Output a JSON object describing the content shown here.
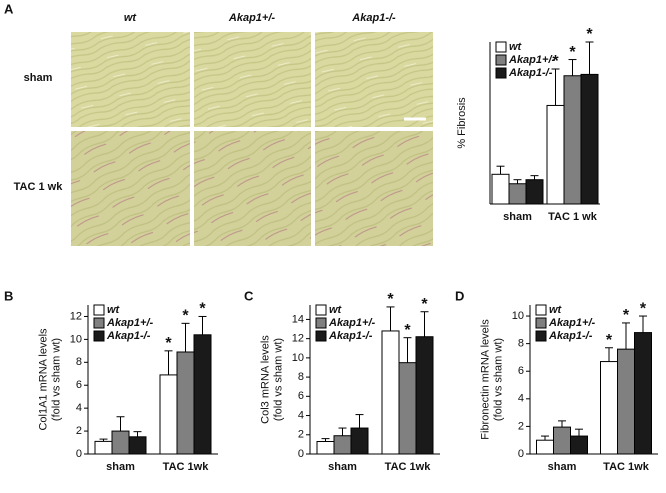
{
  "panel_labels": [
    "A",
    "B",
    "C",
    "D"
  ],
  "histology": {
    "columns": [
      "wt",
      "Akap1+/-",
      "Akap1-/-"
    ],
    "rows": [
      "sham",
      "TAC 1 wk"
    ]
  },
  "chart_data": [
    {
      "type": "bar",
      "ylabel": "% Fibrosis",
      "categories": [
        "sham",
        "TAC 1 wk"
      ],
      "ylim": [
        0,
        6
      ],
      "series": [
        {
          "name": "wt",
          "color": "#ffffff",
          "values": [
            1.1,
            3.65
          ],
          "errors": [
            0.3,
            1.35
          ],
          "significance": [
            null,
            "*"
          ]
        },
        {
          "name": "Akap1+/-",
          "color": "#808080",
          "values": [
            0.75,
            4.75
          ],
          "errors": [
            0.15,
            0.6
          ],
          "significance": [
            null,
            "*"
          ]
        },
        {
          "name": "Akap1-/-",
          "color": "#1a1a1a",
          "values": [
            0.9,
            4.8
          ],
          "errors": [
            0.15,
            1.2
          ],
          "significance": [
            null,
            "*"
          ]
        }
      ]
    },
    {
      "type": "bar",
      "ylabel": [
        "Col1A1 mRNA levels",
        "(fold vs sham wt)"
      ],
      "categories": [
        "sham",
        "TAC 1wk"
      ],
      "ylim": [
        0,
        13
      ],
      "yticks": [
        0,
        2,
        4,
        6,
        8,
        10,
        12
      ],
      "series": [
        {
          "name": "wt",
          "color": "#ffffff",
          "values": [
            1.1,
            6.9
          ],
          "errors": [
            0.2,
            2.1
          ],
          "significance": [
            null,
            "*"
          ]
        },
        {
          "name": "Akap1+/-",
          "color": "#808080",
          "values": [
            2.0,
            8.9
          ],
          "errors": [
            1.25,
            2.5
          ],
          "significance": [
            null,
            "*"
          ]
        },
        {
          "name": "Akap1-/-",
          "color": "#1a1a1a",
          "values": [
            1.5,
            10.4
          ],
          "errors": [
            0.45,
            1.6
          ],
          "significance": [
            null,
            "*"
          ]
        }
      ]
    },
    {
      "type": "bar",
      "ylabel": [
        "Col3 mRNA levels",
        "(fold vs sham wt)"
      ],
      "categories": [
        "sham",
        "TAC 1wk"
      ],
      "ylim": [
        0,
        15.5
      ],
      "yticks": [
        0,
        2,
        4,
        6,
        8,
        10,
        12,
        14
      ],
      "series": [
        {
          "name": "wt",
          "color": "#ffffff",
          "values": [
            1.3,
            12.8
          ],
          "errors": [
            0.3,
            2.5
          ],
          "significance": [
            null,
            "*"
          ]
        },
        {
          "name": "Akap1+/-",
          "color": "#808080",
          "values": [
            1.9,
            9.5
          ],
          "errors": [
            0.8,
            2.6
          ],
          "significance": [
            null,
            "*"
          ]
        },
        {
          "name": "Akap1-/-",
          "color": "#1a1a1a",
          "values": [
            2.7,
            12.2
          ],
          "errors": [
            1.4,
            2.6
          ],
          "significance": [
            null,
            "*"
          ]
        }
      ]
    },
    {
      "type": "bar",
      "ylabel": [
        "Fibronectin mRNA levels",
        "(fold vs sham wt)"
      ],
      "categories": [
        "sham",
        "TAC 1wk"
      ],
      "ylim": [
        0,
        10.8
      ],
      "yticks": [
        0,
        2,
        4,
        6,
        8,
        10
      ],
      "series": [
        {
          "name": "wt",
          "color": "#ffffff",
          "values": [
            1.0,
            6.7
          ],
          "errors": [
            0.3,
            1.0
          ],
          "significance": [
            null,
            "*"
          ]
        },
        {
          "name": "Akap1+/-",
          "color": "#808080",
          "values": [
            1.95,
            7.6
          ],
          "errors": [
            0.45,
            1.9
          ],
          "significance": [
            null,
            "*"
          ]
        },
        {
          "name": "Akap1-/-",
          "color": "#1a1a1a",
          "values": [
            1.3,
            8.8
          ],
          "errors": [
            0.5,
            1.2
          ],
          "significance": [
            null,
            "*"
          ]
        }
      ]
    }
  ]
}
